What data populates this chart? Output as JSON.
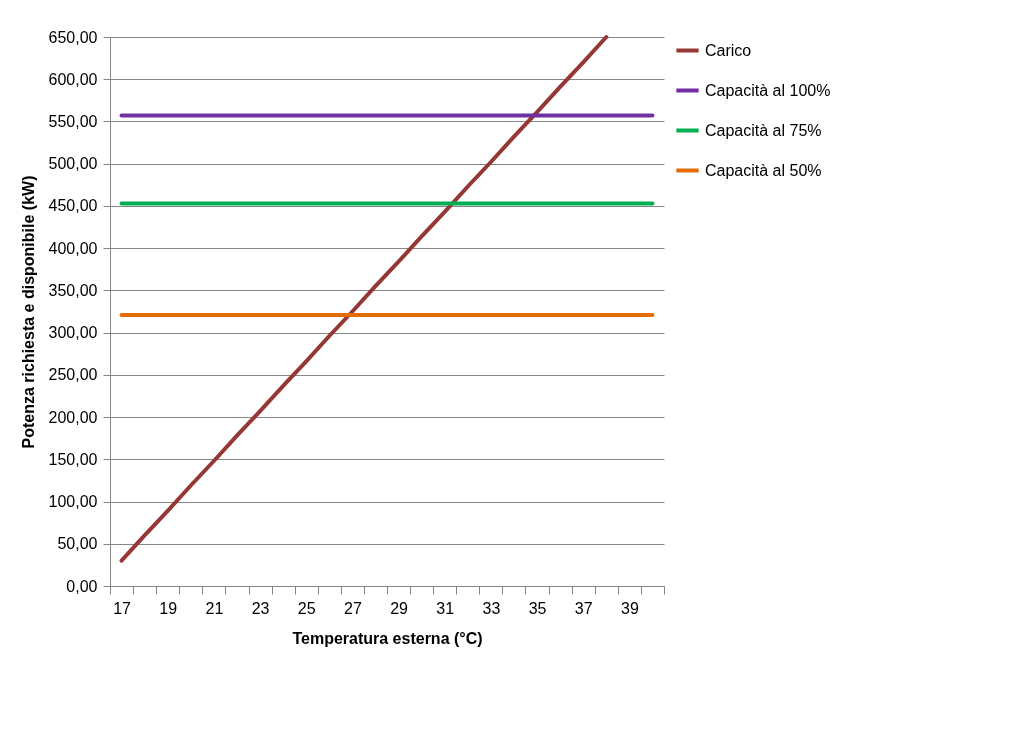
{
  "chart_data": {
    "type": "line",
    "xlabel": "Temperatura esterna (°C)",
    "ylabel": "Potenza richiesta e disponibile (kW)",
    "categories": [
      "17",
      null,
      "19",
      null,
      "21",
      null,
      "23",
      null,
      "25",
      null,
      "27",
      null,
      "29",
      null,
      "31",
      null,
      "33",
      null,
      "35",
      null,
      "37",
      null,
      "39",
      null
    ],
    "series": [
      {
        "name": "Carico",
        "color": "#953735",
        "values": [
          30,
          60,
          89,
          119,
          148,
          178,
          207,
          237,
          266,
          296,
          325,
          355,
          384,
          414,
          443,
          473,
          502,
          532,
          561,
          591,
          620,
          650,
          null,
          null
        ]
      },
      {
        "name": "Capacità al 100%",
        "color": "#7030a0",
        "values": [
          557,
          557,
          557,
          557,
          557,
          557,
          557,
          557,
          557,
          557,
          557,
          557,
          557,
          557,
          557,
          557,
          557,
          557,
          557,
          557,
          557,
          557,
          557,
          557
        ]
      },
      {
        "name": "Capacità al 75%",
        "color": "#00b050",
        "values": [
          453,
          453,
          453,
          453,
          453,
          453,
          453,
          453,
          453,
          453,
          453,
          453,
          453,
          453,
          453,
          453,
          453,
          453,
          453,
          453,
          453,
          453,
          453,
          453
        ]
      },
      {
        "name": "Capacità al 50%",
        "color": "#e36c09",
        "values": [
          321,
          321,
          321,
          321,
          321,
          321,
          321,
          321,
          321,
          321,
          321,
          321,
          321,
          321,
          321,
          321,
          321,
          321,
          321,
          321,
          321,
          321,
          321,
          321
        ]
      }
    ],
    "ylim": [
      0,
      650
    ],
    "yticks": [
      {
        "value": 0,
        "label": "0,00"
      },
      {
        "value": 50,
        "label": "50,00"
      },
      {
        "value": 100,
        "label": "100,00"
      },
      {
        "value": 150,
        "label": "150,00"
      },
      {
        "value": 200,
        "label": "200,00"
      },
      {
        "value": 250,
        "label": "250,00"
      },
      {
        "value": 300,
        "label": "300,00"
      },
      {
        "value": 350,
        "label": "350,00"
      },
      {
        "value": 400,
        "label": "400,00"
      },
      {
        "value": 450,
        "label": "450,00"
      },
      {
        "value": 500,
        "label": "500,00"
      },
      {
        "value": 550,
        "label": "550,00"
      },
      {
        "value": 600,
        "label": "600,00"
      },
      {
        "value": 650,
        "label": "650,00"
      }
    ],
    "grid": "y",
    "legend": "right",
    "marker": "none",
    "line_style": "solid"
  }
}
